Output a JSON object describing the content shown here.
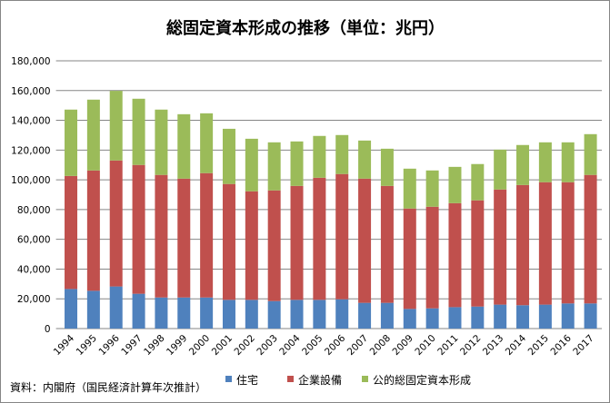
{
  "chart_data": {
    "type": "bar",
    "stacked": true,
    "title": "総固定資本形成の推移（単位：兆円）",
    "xlabel": "",
    "ylabel": "",
    "ylim": [
      0,
      180000
    ],
    "yticks": [
      0,
      20000,
      40000,
      60000,
      80000,
      100000,
      120000,
      140000,
      160000,
      180000
    ],
    "ytick_labels": [
      "0",
      "20,000",
      "40,000",
      "60,000",
      "80,000",
      "100,000",
      "120,000",
      "140,000",
      "160,000",
      "180,000"
    ],
    "grid": true,
    "legend_position": "bottom",
    "categories": [
      "1994",
      "1995",
      "1996",
      "1997",
      "1998",
      "1999",
      "2000",
      "2001",
      "2002",
      "2003",
      "2004",
      "2005",
      "2006",
      "2007",
      "2008",
      "2009",
      "2010",
      "2011",
      "2012",
      "2013",
      "2014",
      "2015",
      "2016",
      "2017"
    ],
    "series": [
      {
        "name": "住宅",
        "color": "#4f81bd",
        "values": [
          26600,
          25400,
          28300,
          23400,
          20900,
          20900,
          20900,
          19300,
          19300,
          18500,
          19300,
          19300,
          19700,
          17300,
          17300,
          13200,
          13600,
          14400,
          14800,
          16100,
          15700,
          16100,
          16900,
          16900
        ]
      },
      {
        "name": "企業設備",
        "color": "#c0504d",
        "values": [
          76000,
          80900,
          84700,
          86600,
          82400,
          79900,
          83600,
          77900,
          73000,
          74400,
          76600,
          82100,
          84200,
          83500,
          78600,
          67500,
          68300,
          69900,
          71400,
          77400,
          80800,
          82300,
          81500,
          86400
        ]
      },
      {
        "name": "公的総固定資本形成",
        "color": "#9bbb59",
        "values": [
          44600,
          47600,
          46800,
          44500,
          43900,
          43300,
          40200,
          37100,
          35300,
          32300,
          29900,
          28100,
          26200,
          25600,
          25000,
          26800,
          24400,
          24400,
          24400,
          26800,
          26900,
          26800,
          26800,
          27400
        ]
      }
    ]
  },
  "source": "資料：内閣府（国民経済計算年次推計）"
}
